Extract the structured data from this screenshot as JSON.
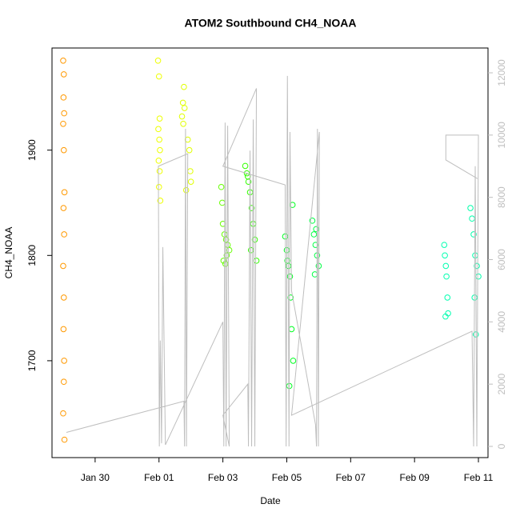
{
  "chart_data": {
    "type": "scatter",
    "title": "ATOM2 Southbound CH4_NOAA",
    "x_label": "Date",
    "y_label": "CH4_NOAA",
    "xlim": [
      28.65,
      42.3
    ],
    "xticks": [
      {
        "value": 30,
        "label": "Jan 30"
      },
      {
        "value": 32,
        "label": "Feb 01"
      },
      {
        "value": 34,
        "label": "Feb 03"
      },
      {
        "value": 36,
        "label": "Feb 05"
      },
      {
        "value": 38,
        "label": "Feb 07"
      },
      {
        "value": 40,
        "label": "Feb 09"
      },
      {
        "value": 42,
        "label": "Feb 11"
      }
    ],
    "ylim": [
      1608,
      1997
    ],
    "yticks": [
      1700,
      1800,
      1900
    ],
    "y2lim": [
      -360,
      12797
    ],
    "y2ticks": [
      0,
      2000,
      4000,
      6000,
      8000,
      10000,
      12000
    ],
    "series": [
      {
        "color": "#FF9900",
        "x": [
          29.0,
          29.02,
          29.01,
          29.03,
          29.0,
          29.02,
          29.04,
          29.01,
          29.03,
          29.0,
          29.02,
          29.01,
          29.03,
          29.02,
          29.0,
          29.04
        ],
        "values": [
          1985,
          1972,
          1950,
          1935,
          1925,
          1900,
          1860,
          1845,
          1820,
          1790,
          1760,
          1730,
          1700,
          1680,
          1650,
          1625
        ]
      },
      {
        "color": "#EEFF00",
        "x": [
          31.97,
          32.0,
          32.02,
          31.98,
          32.01,
          32.03,
          31.99,
          32.02,
          32.0,
          32.04
        ],
        "values": [
          1985,
          1970,
          1930,
          1920,
          1910,
          1900,
          1890,
          1880,
          1865,
          1852
        ]
      },
      {
        "color": "#E0FF00",
        "x": [
          32.72,
          32.75,
          32.78,
          32.8,
          32.76,
          32.9,
          32.95,
          32.98,
          33.0,
          32.85
        ],
        "values": [
          1932,
          1945,
          1960,
          1940,
          1925,
          1910,
          1900,
          1880,
          1870,
          1862
        ]
      },
      {
        "color": "#66FF00",
        "x": [
          33.95,
          33.98,
          34.0,
          34.05,
          34.1,
          34.15,
          34.2,
          34.02,
          34.12,
          34.08
        ],
        "values": [
          1865,
          1850,
          1830,
          1820,
          1815,
          1810,
          1805,
          1795,
          1800,
          1792
        ]
      },
      {
        "color": "#33FF00",
        "x": [
          34.7,
          34.75,
          34.8,
          34.85,
          34.9,
          34.95,
          35.0,
          35.05,
          34.88,
          34.78
        ],
        "values": [
          1885,
          1878,
          1870,
          1860,
          1845,
          1830,
          1815,
          1795,
          1805,
          1875
        ]
      },
      {
        "color": "#00FF22",
        "x": [
          35.95,
          36.0,
          36.05,
          36.1,
          36.12,
          36.15,
          36.2,
          36.08,
          36.02,
          36.18
        ],
        "values": [
          1818,
          1805,
          1790,
          1780,
          1760,
          1730,
          1700,
          1676,
          1795,
          1848
        ]
      },
      {
        "color": "#00FF44",
        "x": [
          36.8,
          36.85,
          36.9,
          36.95,
          37.0,
          36.88,
          36.92
        ],
        "values": [
          1833,
          1820,
          1810,
          1800,
          1790,
          1782,
          1825
        ]
      },
      {
        "color": "#00FFB0",
        "x": [
          40.93,
          40.95,
          40.98,
          41.0,
          41.03,
          41.05,
          40.97
        ],
        "values": [
          1810,
          1800,
          1790,
          1780,
          1760,
          1745,
          1742
        ]
      },
      {
        "color": "#00FFAA",
        "x": [
          41.75,
          41.8,
          41.85,
          41.9,
          41.95,
          42.0,
          41.88,
          41.92
        ],
        "values": [
          1845,
          1835,
          1820,
          1800,
          1790,
          1780,
          1760,
          1725
        ]
      },
      {
        "type": "line",
        "axis": "y2",
        "color": "#BEBEBE",
        "x": [
          29.1,
          32.78,
          32.8,
          32.83,
          32.86,
          32.9,
          31.98,
          32.01,
          32.04,
          32.08,
          32.12,
          32.2,
          34.0,
          34.03,
          34.07,
          34.1,
          34.15,
          34.2,
          34.0,
          34.78,
          34.8,
          34.85,
          34.9,
          34.95,
          35.0,
          35.05,
          34.0,
          35.95,
          35.98,
          36.02,
          36.07,
          36.1,
          36.15,
          36.9,
          36.93,
          36.96,
          36.99,
          37.02,
          36.15,
          41.8,
          41.85,
          41.9,
          41.95,
          42.0,
          40.98,
          40.98,
          41.97
        ],
        "values": [
          450,
          1450,
          0,
          10200,
          0,
          9400,
          9000,
          0,
          3400,
          100,
          6400,
          50,
          4000,
          0,
          10400,
          0,
          10300,
          0,
          1000,
          2000,
          0,
          9500,
          0,
          10500,
          0,
          11500,
          9000,
          8400,
          0,
          11900,
          0,
          10100,
          5000,
          700,
          0,
          10200,
          0,
          10100,
          1000,
          3700,
          0,
          9000,
          0,
          10000,
          10000,
          9200,
          8600
        ]
      }
    ]
  }
}
